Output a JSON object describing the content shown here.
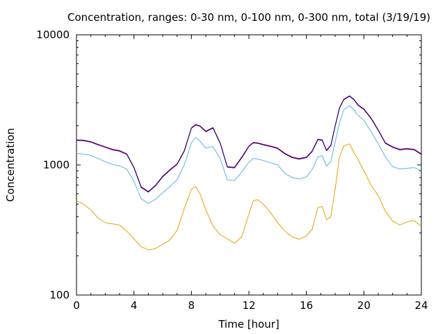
{
  "chart_data": {
    "type": "line",
    "title": "Concentration, ranges: 0-30 nm, 0-100 nm, 0-300 nm, total (3/19/19)",
    "xlabel": "Time [hour]",
    "ylabel": "Concentration",
    "xlim": [
      0,
      24
    ],
    "ylim": [
      100,
      10000
    ],
    "yscale": "log",
    "x_ticks": [
      0,
      4,
      8,
      12,
      16,
      20,
      24
    ],
    "x_tick_labels": [
      "0",
      "4",
      "8",
      "12",
      "16",
      "20",
      "24"
    ],
    "y_ticks": [
      100,
      1000,
      10000
    ],
    "y_tick_labels": [
      "100",
      "1000",
      "10000"
    ],
    "grid": false,
    "legend": "none",
    "series": [
      {
        "color": "#e69f00",
        "x": [
          0,
          0.5,
          1,
          1.5,
          2,
          2.5,
          3,
          3.5,
          4,
          4.5,
          5,
          5.5,
          6,
          6.5,
          7,
          7.5,
          8,
          8.3,
          8.6,
          9,
          9.5,
          10,
          10.5,
          11,
          11.5,
          12,
          12.3,
          12.6,
          13,
          13.5,
          14,
          14.5,
          15,
          15.5,
          16,
          16.4,
          16.8,
          17.1,
          17.4,
          17.7,
          18,
          18.3,
          18.6,
          19,
          19.3,
          19.6,
          20,
          20.5,
          21,
          21.5,
          22,
          22.5,
          23,
          23.5,
          24
        ],
        "values": [
          530,
          500,
          450,
          390,
          360,
          352,
          345,
          310,
          270,
          235,
          222,
          228,
          245,
          265,
          315,
          460,
          650,
          680,
          600,
          450,
          340,
          290,
          270,
          250,
          280,
          420,
          530,
          540,
          500,
          430,
          360,
          310,
          280,
          268,
          285,
          320,
          470,
          480,
          380,
          400,
          650,
          1150,
          1400,
          1450,
          1250,
          1100,
          900,
          700,
          580,
          440,
          370,
          345,
          365,
          375,
          335
        ]
      },
      {
        "color": "#56b4e9",
        "x": [
          0,
          0.5,
          1,
          1.5,
          2,
          2.5,
          3,
          3.5,
          4,
          4.5,
          5,
          5.5,
          6,
          6.5,
          7,
          7.5,
          8,
          8.3,
          8.6,
          9,
          9.5,
          10,
          10.5,
          11,
          11.5,
          12,
          12.3,
          12.6,
          13,
          13.5,
          14,
          14.5,
          15,
          15.5,
          16,
          16.4,
          16.8,
          17.1,
          17.4,
          17.7,
          18,
          18.3,
          18.6,
          19,
          19.3,
          19.6,
          20,
          20.5,
          21,
          21.5,
          22,
          22.5,
          23,
          23.5,
          24
        ],
        "values": [
          1230,
          1210,
          1180,
          1120,
          1060,
          1010,
          980,
          930,
          750,
          550,
          505,
          545,
          610,
          680,
          770,
          1000,
          1480,
          1620,
          1520,
          1350,
          1380,
          1120,
          765,
          760,
          880,
          1050,
          1120,
          1110,
          1080,
          1040,
          1000,
          860,
          800,
          780,
          810,
          920,
          1150,
          1180,
          980,
          1060,
          1500,
          2100,
          2650,
          2850,
          2650,
          2400,
          2200,
          1800,
          1450,
          1150,
          970,
          930,
          940,
          955,
          900
        ]
      },
      {
        "color": "#cc0066",
        "x": [
          0,
          0.5,
          1,
          1.5,
          2,
          2.5,
          3,
          3.5,
          4,
          4.5,
          5,
          5.5,
          6,
          6.5,
          7,
          7.5,
          8,
          8.3,
          8.6,
          9,
          9.5,
          10,
          10.5,
          11,
          11.5,
          12,
          12.3,
          12.6,
          13,
          13.5,
          14,
          14.5,
          15,
          15.5,
          16,
          16.4,
          16.8,
          17.1,
          17.4,
          17.7,
          18,
          18.3,
          18.6,
          19,
          19.3,
          19.6,
          20,
          20.5,
          21,
          21.5,
          22,
          22.5,
          23,
          23.5,
          24
        ],
        "values": [
          1560,
          1550,
          1510,
          1440,
          1380,
          1320,
          1290,
          1220,
          960,
          680,
          625,
          700,
          820,
          920,
          1020,
          1290,
          1930,
          2050,
          2000,
          1820,
          1940,
          1480,
          970,
          960,
          1150,
          1400,
          1490,
          1480,
          1440,
          1400,
          1350,
          1230,
          1150,
          1120,
          1150,
          1280,
          1580,
          1560,
          1300,
          1420,
          2000,
          2750,
          3200,
          3400,
          3200,
          2900,
          2700,
          2300,
          1860,
          1480,
          1380,
          1320,
          1340,
          1320,
          1220
        ]
      },
      {
        "color": "#000080",
        "x": [
          0,
          0.5,
          1,
          1.5,
          2,
          2.5,
          3,
          3.5,
          4,
          4.5,
          5,
          5.5,
          6,
          6.5,
          7,
          7.5,
          8,
          8.3,
          8.6,
          9,
          9.5,
          10,
          10.5,
          11,
          11.5,
          12,
          12.3,
          12.6,
          13,
          13.5,
          14,
          14.5,
          15,
          15.5,
          16,
          16.4,
          16.8,
          17.1,
          17.4,
          17.7,
          18,
          18.3,
          18.6,
          19,
          19.3,
          19.6,
          20,
          20.5,
          21,
          21.5,
          22,
          22.5,
          23,
          23.5,
          24
        ],
        "values": [
          1545,
          1535,
          1495,
          1425,
          1365,
          1305,
          1275,
          1205,
          950,
          672,
          618,
          692,
          810,
          910,
          1010,
          1275,
          1910,
          2030,
          1980,
          1800,
          1920,
          1465,
          960,
          950,
          1135,
          1385,
          1475,
          1465,
          1425,
          1385,
          1335,
          1215,
          1138,
          1108,
          1138,
          1265,
          1565,
          1545,
          1285,
          1405,
          1980,
          2720,
          3170,
          3370,
          3170,
          2870,
          2670,
          2270,
          1840,
          1465,
          1365,
          1305,
          1325,
          1305,
          1205
        ]
      }
    ]
  }
}
